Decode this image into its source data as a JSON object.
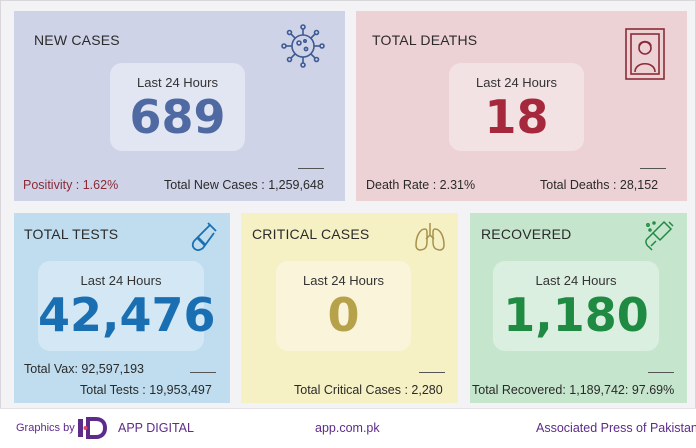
{
  "colors": {
    "new_cases_bg": "#cfd3e8",
    "deaths_bg": "#ecd2d5",
    "tests_bg": "#bfddef",
    "critical_bg": "#f6f0c5",
    "recovered_bg": "#c5e5cd",
    "new_cases_number": "#4f6aa3",
    "deaths_number": "#a5283c",
    "tests_number": "#1a6fb3",
    "critical_number": "#b5a24a",
    "recovered_number": "#1f8a42",
    "positivity": "#8a2b37",
    "footer_text": "#5d2b8a"
  },
  "new_cases": {
    "title": "NEW CASES",
    "period": "Last 24 Hours",
    "value": "689",
    "positivity": "Positivity : 1.62%",
    "total": "Total New Cases : 1,259,648",
    "icon": "virus-icon"
  },
  "deaths": {
    "title": "TOTAL DEATHS",
    "period": "Last 24 Hours",
    "value": "18",
    "rate": "Death Rate : 2.31%",
    "total": "Total Deaths : 28,152",
    "icon": "portrait-frame-icon"
  },
  "tests": {
    "title": "TOTAL TESTS",
    "period": "Last 24 Hours",
    "value": "42,476",
    "vax": "Total Vax: 92,597,193",
    "total": "Total Tests : 19,953,497",
    "icon": "test-tube-icon"
  },
  "critical": {
    "title": "CRITICAL CASES",
    "period": "Last 24 Hours",
    "value": "0",
    "total": "Total Critical Cases : 2,280",
    "icon": "lungs-icon"
  },
  "recovered": {
    "title": "RECOVERED",
    "period": "Last 24 Hours",
    "value": "1,180",
    "total": "Total Recovered: 1,189,742: 97.69%",
    "icon": "sanitizer-hand-icon"
  },
  "footer": {
    "graphics_by": "Graphics by",
    "brand": "APP DIGITAL",
    "website": "app.com.pk",
    "agency": "Associated Press of Pakistan"
  }
}
